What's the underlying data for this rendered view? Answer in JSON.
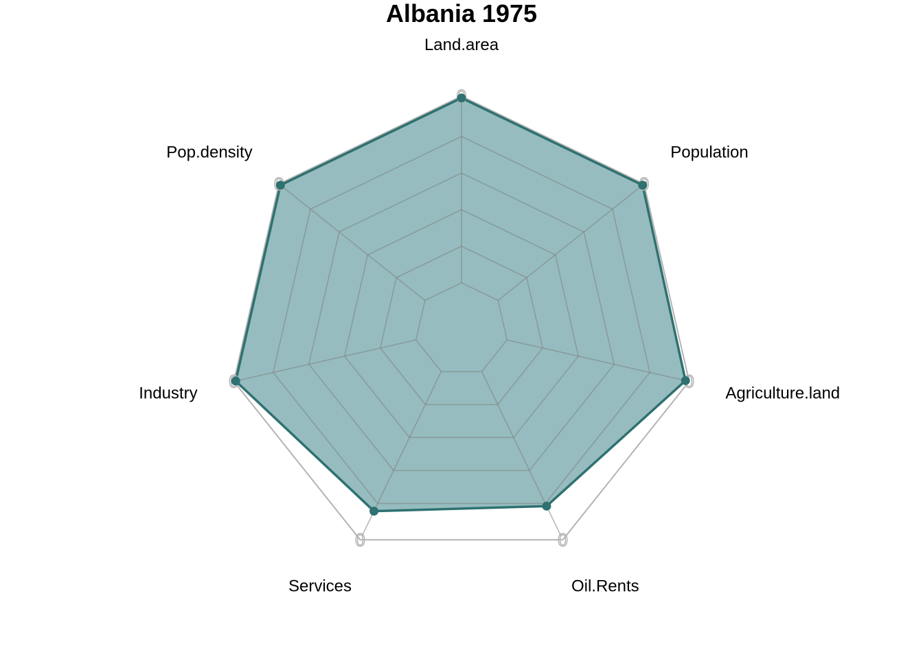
{
  "chart_data": {
    "type": "radar",
    "title": "Albania 1975",
    "axes": [
      "Land.area",
      "Population",
      "Agriculture.land",
      "Oil.Rents",
      "Services",
      "Industry",
      "Pop.density"
    ],
    "series": [
      {
        "values": [
          0.99,
          0.99,
          0.98,
          0.8,
          0.83,
          0.99,
          0.99
        ]
      }
    ],
    "scale_max_label": "0",
    "grid_levels": 5,
    "range": [
      0,
      1
    ],
    "colors": {
      "series_fill": "#2e7a80",
      "series_line": "#2e7170",
      "grid": "#808080",
      "outer_ring": "#b3b3b3"
    }
  }
}
